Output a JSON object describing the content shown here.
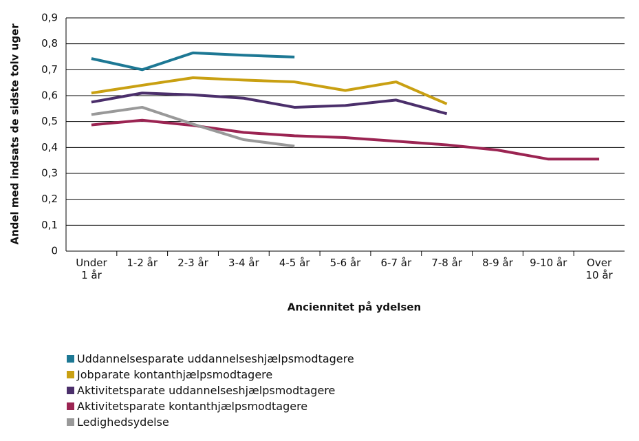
{
  "chart_data": {
    "type": "line",
    "y_label": "Andel med indsats de sidste tolv uger",
    "x_label": "Anciennitet på ydelsen",
    "categories": [
      "Under\n1 år",
      "1-2 år",
      "2-3 år",
      "3-4 år",
      "4-5 år",
      "5-6 år",
      "6-7 år",
      "7-8 år",
      "8-9 år",
      "9-10 år",
      "Over\n10 år"
    ],
    "ylim": [
      0,
      0.9
    ],
    "yticks": [
      0,
      {
        "value": 0.1,
        "label": "0,1"
      },
      {
        "value": 0.2,
        "label": "0,2"
      },
      {
        "value": 0.3,
        "label": "0,3"
      },
      {
        "value": 0.4,
        "label": "0,4"
      },
      {
        "value": 0.5,
        "label": "0,5"
      },
      {
        "value": 0.6,
        "label": "0,6"
      },
      {
        "value": 0.7,
        "label": "0,7"
      },
      {
        "value": 0.8,
        "label": "0,8"
      },
      {
        "value": 0.9,
        "label": "0,9"
      }
    ],
    "grid": true,
    "series": [
      {
        "name": "Uddannelsesparate uddannelseshjælpsmodtagere",
        "color": "#1d7894",
        "values": [
          0.743,
          0.7,
          0.765,
          0.756,
          0.749,
          null,
          null,
          null,
          null,
          null,
          null
        ]
      },
      {
        "name": "Jobparate kontanthjælpsmodtagere",
        "color": "#c9a012",
        "values": [
          0.61,
          0.64,
          0.669,
          0.66,
          0.653,
          0.62,
          0.653,
          0.568,
          null,
          null,
          null
        ]
      },
      {
        "name": "Aktivitetsparate uddannelseshjælpsmodtagere",
        "color": "#4b2f6b",
        "values": [
          0.575,
          0.61,
          0.603,
          0.59,
          0.555,
          0.562,
          0.583,
          0.53,
          null,
          null,
          null
        ]
      },
      {
        "name": "Aktivitetsparate kontanthjælpsmodtagere",
        "color": "#9b2452",
        "values": [
          0.487,
          0.505,
          0.485,
          0.458,
          0.445,
          0.438,
          0.424,
          0.41,
          0.39,
          0.355,
          0.355
        ]
      },
      {
        "name": "Ledighedsydelse",
        "color": "#999999",
        "values": [
          0.527,
          0.555,
          0.49,
          0.43,
          0.405,
          null,
          null,
          null,
          null,
          null,
          null
        ]
      }
    ]
  }
}
